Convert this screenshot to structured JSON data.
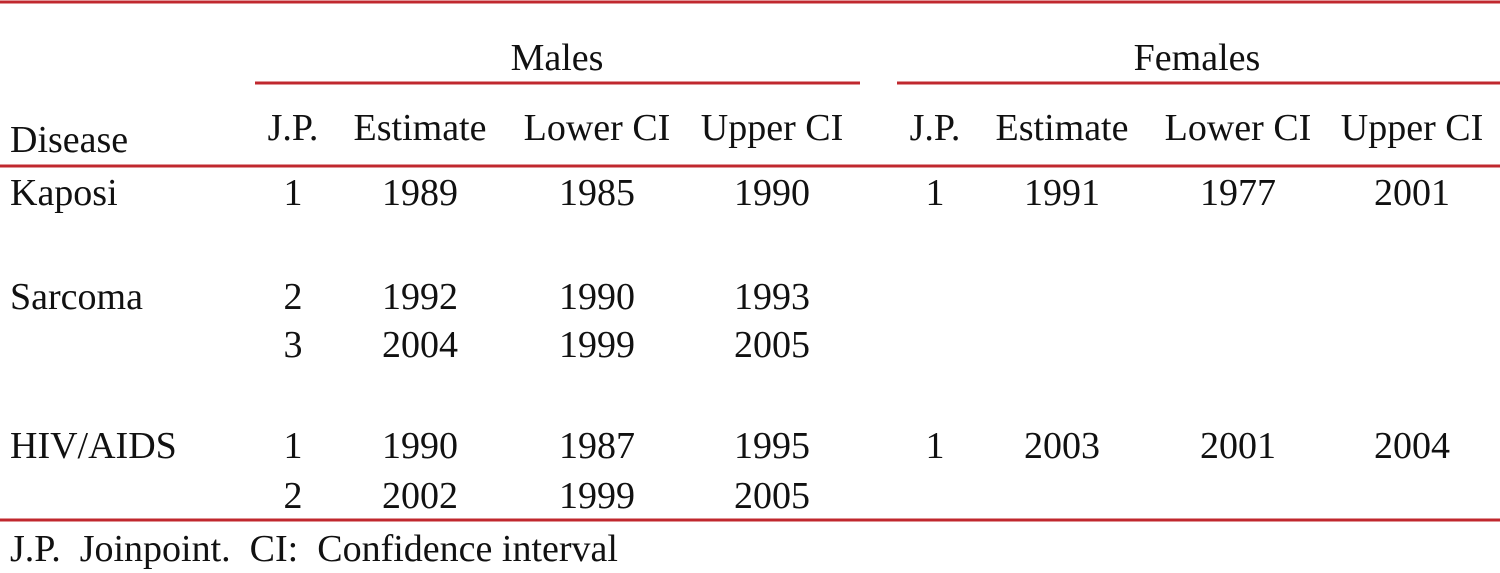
{
  "table": {
    "disease_header": "Disease",
    "groups": [
      {
        "name": "Males",
        "columns": [
          "J.P.",
          "Estimate",
          "Lower CI",
          "Upper CI"
        ]
      },
      {
        "name": "Females",
        "columns": [
          "J.P.",
          "Estimate",
          "Lower CI",
          "Upper CI"
        ]
      }
    ],
    "rows": [
      {
        "disease": "Kaposi",
        "cells": [
          [
            1,
            1989,
            1985,
            1990
          ],
          [
            1,
            1991,
            1977,
            2001
          ]
        ]
      },
      {
        "disease": "Sarcoma",
        "cells": [
          [
            2,
            1992,
            1990,
            1993
          ]
        ]
      },
      {
        "cells": [
          [
            3,
            2004,
            1999,
            2005
          ]
        ]
      },
      {
        "disease": "HIV/AIDS",
        "cells": [
          [
            1,
            1990,
            1987,
            1995
          ],
          [
            1,
            2003,
            2001,
            2004
          ]
        ]
      },
      {
        "cells": [
          [
            2,
            2002,
            1999,
            2005
          ]
        ]
      }
    ]
  },
  "footnote": "J.P.  Joinpoint.  CI:  Confidence interval"
}
